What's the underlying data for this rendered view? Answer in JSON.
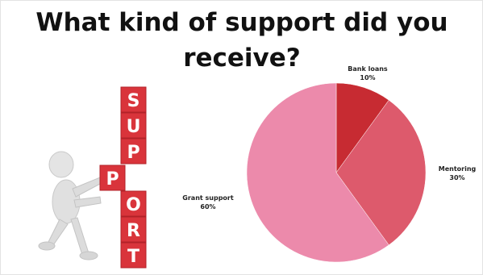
{
  "title": "What kind of support did you receive?",
  "illustration": {
    "letters": [
      "S",
      "U",
      "P",
      "P",
      "O",
      "R",
      "T"
    ],
    "block_color": "#d9343b",
    "letter_color": "#ffffff",
    "figure_color": "#e4e4e4"
  },
  "chart_data": {
    "type": "pie",
    "title": "What kind of support did you receive?",
    "slices": [
      {
        "label": "Bank loans",
        "value": 10,
        "value_label": "10%",
        "color": "#c72b32"
      },
      {
        "label": "Mentoring",
        "value": 30,
        "value_label": "30%",
        "color": "#dd5a6c"
      },
      {
        "label": "Grant support",
        "value": 60,
        "value_label": "60%",
        "color": "#ec8aab"
      }
    ]
  }
}
